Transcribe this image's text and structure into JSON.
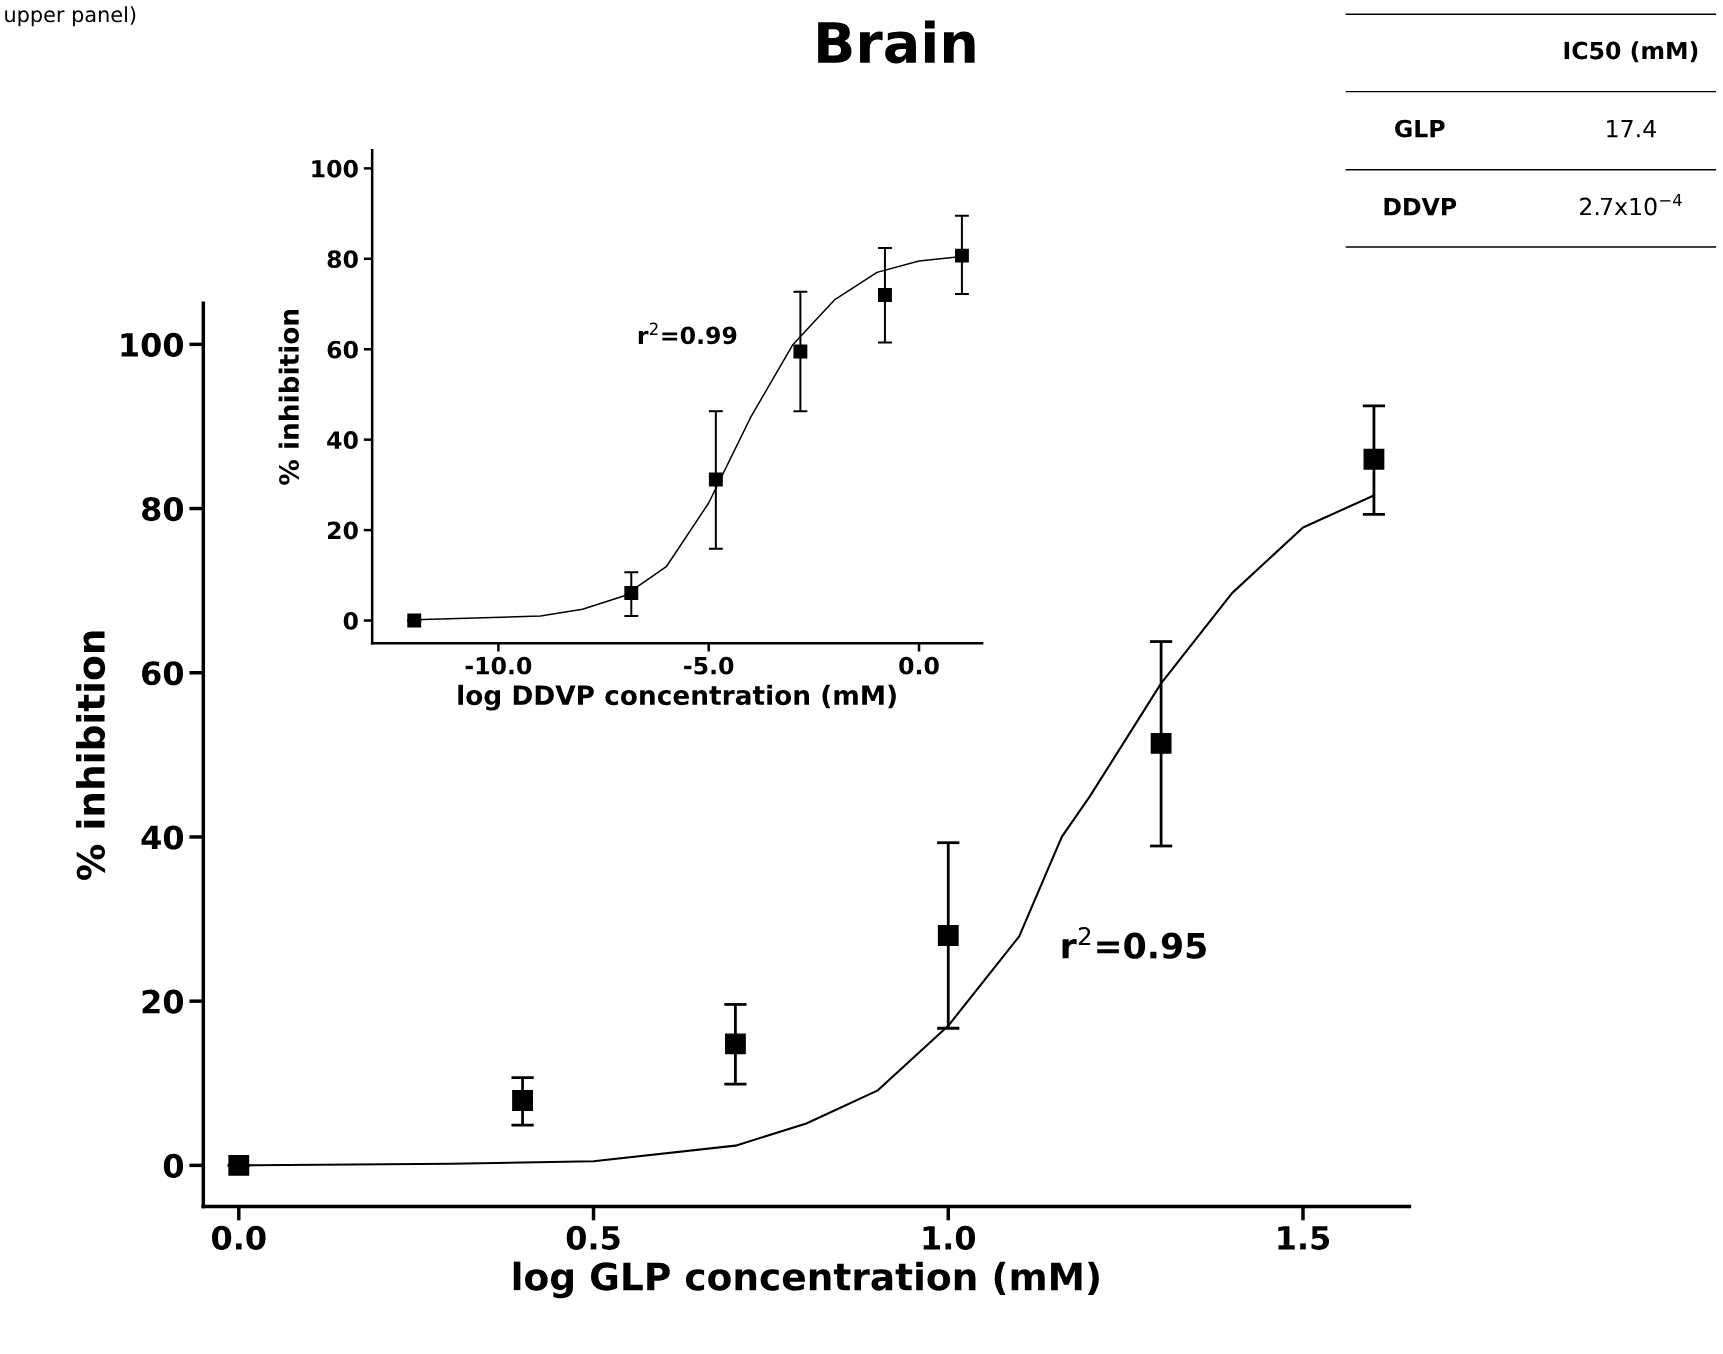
{
  "chart_data": [
    {
      "type": "scatter",
      "title": "Brain",
      "xlabel": "log GLP concentration (mM)",
      "ylabel": "% inhibition",
      "marker": "square",
      "xlim": [
        -0.05,
        1.65
      ],
      "xticks": [
        {
          "value": 0,
          "label": "0.0"
        },
        {
          "value": 0.5,
          "label": "0.5"
        },
        {
          "value": 1,
          "label": "1.0"
        },
        {
          "value": 1.5,
          "label": "1.5"
        }
      ],
      "ylim": [
        -5,
        105
      ],
      "yticks": [
        0,
        20,
        40,
        60,
        80,
        100
      ],
      "series": [
        {
          "type": "scatter",
          "color": "#000000",
          "x": [
            0,
            0.4,
            0.7,
            1.0,
            1.3,
            1.6
          ],
          "values": [
            0,
            7.9,
            14.8,
            28.0,
            51.4,
            86.0
          ],
          "errors": [
            null,
            [
              4.9,
              10.7
            ],
            [
              9.9,
              19.6
            ],
            [
              16.7,
              39.3
            ],
            [
              38.9,
              63.8
            ],
            [
              79.3,
              92.5
            ]
          ]
        },
        {
          "type": "line",
          "marker": "none",
          "color": "#000000",
          "x": [
            0,
            0.3,
            0.5,
            0.7,
            0.8,
            0.9,
            1.0,
            1.1,
            1.16,
            1.2,
            1.3,
            1.4,
            1.5,
            1.6
          ],
          "values": [
            0,
            0.2,
            0.5,
            2.4,
            5.1,
            9.1,
            17,
            27.9,
            40,
            45,
            58.7,
            69.7,
            77.7,
            81.6
          ]
        }
      ],
      "annotations": [
        "upper panel)",
        "r$^{2}$=0.95"
      ]
    },
    {
      "type": "scatter",
      "xlabel": "log DDVP concentration (mM)",
      "ylabel": "% inhibition",
      "marker": "square",
      "xlim": [
        -13.0,
        1.5
      ],
      "xticks": [
        {
          "value": -10,
          "label": "-10.0"
        },
        {
          "value": -5,
          "label": "-5.0"
        },
        {
          "value": 0,
          "label": "0.0"
        }
      ],
      "ylim": [
        -5,
        104
      ],
      "yticks": [
        0,
        20,
        40,
        60,
        80,
        100
      ],
      "series": [
        {
          "type": "scatter",
          "color": "#000000",
          "x": [
            -12,
            -6.84,
            -4.83,
            -2.82,
            -0.81,
            1.02
          ],
          "values": [
            0,
            6.1,
            31.2,
            59.5,
            72.0,
            80.7
          ],
          "errors": [
            null,
            [
              1.0,
              10.7
            ],
            [
              15.9,
              46.3
            ],
            [
              46.3,
              72.7
            ],
            [
              61.5,
              82.4
            ],
            [
              72.2,
              89.5
            ]
          ]
        },
        {
          "type": "line",
          "marker": "none",
          "color": "#000000",
          "x": [
            -12,
            -9,
            -8,
            -7,
            -6,
            -5,
            -4,
            -3,
            -2,
            -1,
            0,
            1
          ],
          "values": [
            0.2,
            1,
            2.5,
            5.5,
            12,
            26,
            45,
            61,
            71,
            77,
            79.5,
            80.5
          ]
        }
      ],
      "annotations": [
        "r$^{2}$=0.99"
      ]
    },
    {
      "type": "other",
      "annotations": [
        "IC50 (mM)",
        "GLP",
        "17.4",
        "DDVP",
        "2.7x10$^{−4}$"
      ]
    }
  ]
}
